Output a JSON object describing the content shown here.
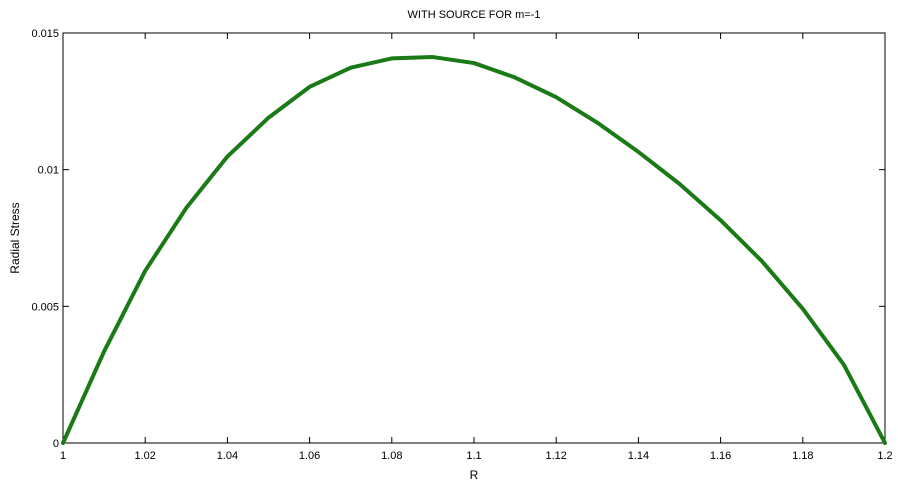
{
  "chart_data": {
    "type": "line",
    "title": "WITH SOURCE FOR m=-1",
    "xlabel": "R",
    "ylabel": "Radial Stress",
    "xlim": [
      1,
      1.2
    ],
    "ylim": [
      0,
      0.015
    ],
    "x_ticks": [
      1,
      1.02,
      1.04,
      1.06,
      1.08,
      1.1,
      1.12,
      1.14,
      1.16,
      1.18,
      1.2
    ],
    "x_tick_labels": [
      "1",
      "1.02",
      "1.04",
      "1.06",
      "1.08",
      "1.1",
      "1.12",
      "1.14",
      "1.16",
      "1.18",
      "1.2"
    ],
    "y_ticks": [
      0,
      0.005,
      0.01,
      0.015
    ],
    "y_tick_labels": [
      "0",
      "0.005",
      "0.01",
      "0.015"
    ],
    "grid": false,
    "legend": "none",
    "series": [
      {
        "color": "#1a7a16",
        "x": [
          1.0,
          1.01,
          1.02,
          1.03,
          1.04,
          1.05,
          1.06,
          1.07,
          1.08,
          1.09,
          1.1,
          1.11,
          1.12,
          1.13,
          1.14,
          1.15,
          1.16,
          1.17,
          1.18,
          1.19,
          1.2
        ],
        "y": [
          0.0,
          0.00335,
          0.0063,
          0.0086,
          0.01048,
          0.0119,
          0.01303,
          0.01373,
          0.01407,
          0.01412,
          0.0139,
          0.01337,
          0.01265,
          0.01172,
          0.01065,
          0.00948,
          0.00815,
          0.00666,
          0.00491,
          0.00286,
          0.0
        ]
      }
    ]
  }
}
